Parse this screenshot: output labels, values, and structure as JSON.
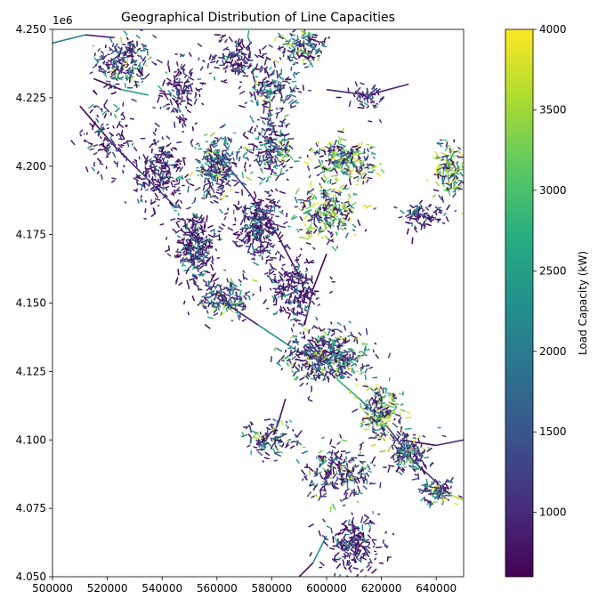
{
  "chart_data": {
    "type": "scatter",
    "title": "Geographical Distribution of Line Capacities",
    "xlabel": "",
    "ylabel": "",
    "xlim": [
      500000,
      650000
    ],
    "ylim": [
      4050000,
      4250000
    ],
    "y_offset_label": "1e6",
    "x_ticks": [
      {
        "value": 500000,
        "label": "500000"
      },
      {
        "value": 520000,
        "label": "520000"
      },
      {
        "value": 540000,
        "label": "540000"
      },
      {
        "value": 560000,
        "label": "560000"
      },
      {
        "value": 580000,
        "label": "580000"
      },
      {
        "value": 600000,
        "label": "600000"
      },
      {
        "value": 620000,
        "label": "620000"
      },
      {
        "value": 640000,
        "label": "640000"
      }
    ],
    "y_ticks": [
      {
        "value": 4050000,
        "label": "4.050"
      },
      {
        "value": 4075000,
        "label": "4.075"
      },
      {
        "value": 4100000,
        "label": "4.100"
      },
      {
        "value": 4125000,
        "label": "4.125"
      },
      {
        "value": 4150000,
        "label": "4.150"
      },
      {
        "value": 4175000,
        "label": "4.175"
      },
      {
        "value": 4200000,
        "label": "4.200"
      },
      {
        "value": 4225000,
        "label": "4.225"
      },
      {
        "value": 4250000,
        "label": "4.250"
      }
    ],
    "colorbar": {
      "label": "Load Capacity (kW)",
      "colormap": "viridis",
      "range": [
        600,
        4000
      ],
      "ticks": [
        {
          "value": 1000,
          "label": "1000"
        },
        {
          "value": 1500,
          "label": "1500"
        },
        {
          "value": 2000,
          "label": "2000"
        },
        {
          "value": 2500,
          "label": "2500"
        },
        {
          "value": 3000,
          "label": "3000"
        },
        {
          "value": 3500,
          "label": "3500"
        },
        {
          "value": 4000,
          "label": "4000"
        }
      ]
    },
    "clusters": [
      {
        "x": 526000,
        "y": 4238000,
        "spread_x": 9000,
        "spread_y": 9000,
        "density": 220,
        "capacity_mix": "mixed"
      },
      {
        "x": 547000,
        "y": 4227000,
        "spread_x": 7000,
        "spread_y": 12000,
        "density": 140,
        "capacity_mix": "low"
      },
      {
        "x": 567000,
        "y": 4240000,
        "spread_x": 9000,
        "spread_y": 7000,
        "density": 140,
        "capacity_mix": "low"
      },
      {
        "x": 592000,
        "y": 4244000,
        "spread_x": 8000,
        "spread_y": 6000,
        "density": 140,
        "capacity_mix": "mixed"
      },
      {
        "x": 580000,
        "y": 4228000,
        "spread_x": 9000,
        "spread_y": 8000,
        "density": 160,
        "capacity_mix": "mixed"
      },
      {
        "x": 520000,
        "y": 4211000,
        "spread_x": 8000,
        "spread_y": 12000,
        "density": 120,
        "capacity_mix": "low"
      },
      {
        "x": 540000,
        "y": 4198000,
        "spread_x": 9000,
        "spread_y": 12000,
        "density": 220,
        "capacity_mix": "low"
      },
      {
        "x": 560000,
        "y": 4200000,
        "spread_x": 8000,
        "spread_y": 10000,
        "density": 260,
        "capacity_mix": "mixed"
      },
      {
        "x": 580000,
        "y": 4206000,
        "spread_x": 7000,
        "spread_y": 10000,
        "density": 220,
        "capacity_mix": "mixed"
      },
      {
        "x": 607000,
        "y": 4202000,
        "spread_x": 10000,
        "spread_y": 7000,
        "density": 260,
        "capacity_mix": "high"
      },
      {
        "x": 600000,
        "y": 4183000,
        "spread_x": 10000,
        "spread_y": 9000,
        "density": 260,
        "capacity_mix": "high"
      },
      {
        "x": 645000,
        "y": 4199000,
        "spread_x": 5000,
        "spread_y": 10000,
        "density": 160,
        "capacity_mix": "high"
      },
      {
        "x": 552000,
        "y": 4171000,
        "spread_x": 6000,
        "spread_y": 13000,
        "density": 300,
        "capacity_mix": "low"
      },
      {
        "x": 575000,
        "y": 4178000,
        "spread_x": 8000,
        "spread_y": 10000,
        "density": 300,
        "capacity_mix": "low"
      },
      {
        "x": 563000,
        "y": 4152000,
        "spread_x": 9000,
        "spread_y": 7000,
        "density": 180,
        "capacity_mix": "mixed"
      },
      {
        "x": 588000,
        "y": 4155000,
        "spread_x": 8000,
        "spread_y": 10000,
        "density": 240,
        "capacity_mix": "low"
      },
      {
        "x": 600000,
        "y": 4131000,
        "spread_x": 13000,
        "spread_y": 9000,
        "density": 480,
        "capacity_mix": "mixed"
      },
      {
        "x": 620000,
        "y": 4110000,
        "spread_x": 7000,
        "spread_y": 9000,
        "density": 200,
        "capacity_mix": "high"
      },
      {
        "x": 630000,
        "y": 4095000,
        "spread_x": 7000,
        "spread_y": 7000,
        "density": 180,
        "capacity_mix": "mixed"
      },
      {
        "x": 605000,
        "y": 4088000,
        "spread_x": 11000,
        "spread_y": 8000,
        "density": 240,
        "capacity_mix": "mixed"
      },
      {
        "x": 580000,
        "y": 4100000,
        "spread_x": 9000,
        "spread_y": 6000,
        "density": 120,
        "capacity_mix": "mixed"
      },
      {
        "x": 610000,
        "y": 4062000,
        "spread_x": 9000,
        "spread_y": 9000,
        "density": 220,
        "capacity_mix": "low"
      },
      {
        "x": 640000,
        "y": 4081000,
        "spread_x": 5000,
        "spread_y": 4000,
        "density": 100,
        "capacity_mix": "mixed"
      },
      {
        "x": 635000,
        "y": 4182000,
        "spread_x": 6000,
        "spread_y": 4000,
        "density": 80,
        "capacity_mix": "low"
      },
      {
        "x": 615000,
        "y": 4225000,
        "spread_x": 6000,
        "spread_y": 4000,
        "density": 50,
        "capacity_mix": "low"
      }
    ],
    "polylines": [
      {
        "points": [
          [
            510000,
            4222000
          ],
          [
            522000,
            4208000
          ],
          [
            532000,
            4198000
          ],
          [
            545000,
            4185000
          ]
        ],
        "capacity_mix": "low"
      },
      {
        "points": [
          [
            560000,
            4152000
          ],
          [
            575000,
            4142000
          ],
          [
            590000,
            4132000
          ],
          [
            600000,
            4128000
          ]
        ],
        "capacity_mix": "mixed"
      },
      {
        "points": [
          [
            604000,
            4122000
          ],
          [
            612000,
            4115000
          ],
          [
            622000,
            4105000
          ],
          [
            632000,
            4092000
          ],
          [
            645000,
            4080000
          ],
          [
            650000,
            4078000
          ]
        ],
        "capacity_mix": "mixed"
      },
      {
        "points": [
          [
            585000,
            4115000
          ],
          [
            582000,
            4105000
          ],
          [
            575000,
            4098000
          ]
        ],
        "capacity_mix": "low"
      },
      {
        "points": [
          [
            627000,
            4100000
          ],
          [
            640000,
            4098000
          ],
          [
            650000,
            4100000
          ]
        ],
        "capacity_mix": "low"
      },
      {
        "points": [
          [
            600000,
            4168000
          ],
          [
            595000,
            4155000
          ],
          [
            592000,
            4142000
          ]
        ],
        "capacity_mix": "mixed"
      },
      {
        "points": [
          [
            560000,
            4205000
          ],
          [
            572000,
            4190000
          ],
          [
            582000,
            4175000
          ],
          [
            590000,
            4160000
          ]
        ],
        "capacity_mix": "low"
      },
      {
        "points": [
          [
            500000,
            4245000
          ],
          [
            512000,
            4248000
          ],
          [
            522000,
            4247000
          ]
        ],
        "capacity_mix": "low"
      },
      {
        "points": [
          [
            515000,
            4232000
          ],
          [
            525000,
            4228000
          ],
          [
            535000,
            4226000
          ]
        ],
        "capacity_mix": "low"
      },
      {
        "points": [
          [
            600000,
            4228000
          ],
          [
            615000,
            4226000
          ],
          [
            630000,
            4230000
          ]
        ],
        "capacity_mix": "low"
      },
      {
        "points": [
          [
            600000,
            4065000
          ],
          [
            595000,
            4055000
          ],
          [
            590000,
            4050000
          ]
        ],
        "capacity_mix": "mixed"
      }
    ]
  }
}
